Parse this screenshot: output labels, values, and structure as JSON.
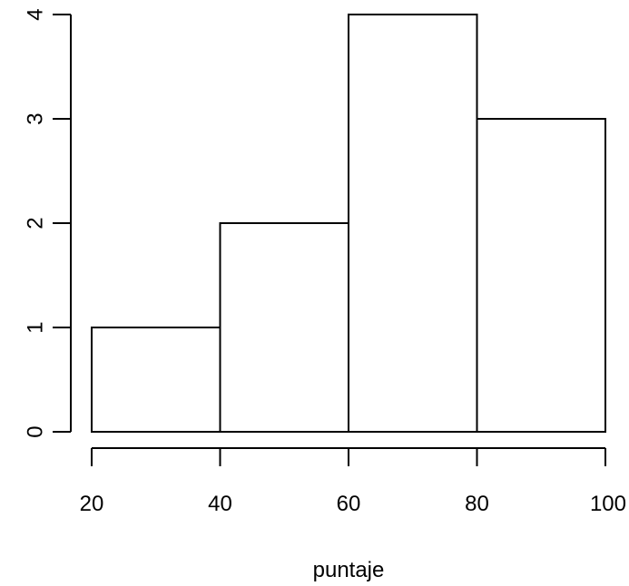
{
  "chart_data": {
    "type": "bar",
    "title": "",
    "xlabel": "puntaje",
    "ylabel": "",
    "bins": [
      {
        "from": 20,
        "to": 40,
        "value": 1
      },
      {
        "from": 40,
        "to": 60,
        "value": 2
      },
      {
        "from": 60,
        "to": 80,
        "value": 4
      },
      {
        "from": 80,
        "to": 100,
        "value": 3
      }
    ],
    "x_ticks": [
      20,
      40,
      60,
      80,
      100
    ],
    "y_ticks": [
      0,
      1,
      2,
      3,
      4
    ],
    "xlim": [
      20,
      100
    ],
    "ylim": [
      0,
      4
    ],
    "grid": false,
    "colors": {
      "bar_fill": "#ffffff",
      "bar_stroke": "#000000",
      "axis": "#000000"
    }
  }
}
